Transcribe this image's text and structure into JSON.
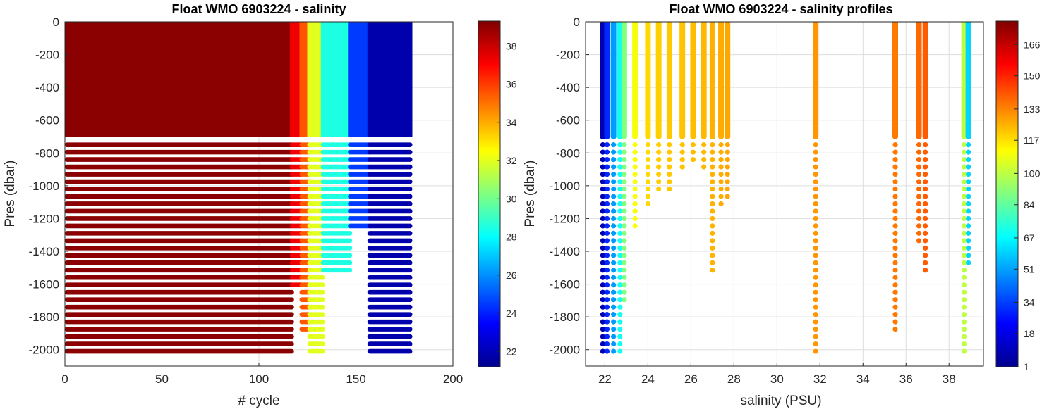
{
  "left_chart": {
    "title": "Float WMO 6903224 - salinity",
    "xlabel": "# cycle",
    "ylabel": "Pres (dbar)",
    "xticks": [
      "0",
      "50",
      "100",
      "150",
      "200"
    ],
    "yticks": [
      "0",
      "-200",
      "-400",
      "-600",
      "-800",
      "-1000",
      "-1200",
      "-1400",
      "-1600",
      "-1800",
      "-2000"
    ],
    "colorbar_ticks": [
      "38",
      "36",
      "34",
      "32",
      "30",
      "28",
      "26",
      "24",
      "22"
    ]
  },
  "right_chart": {
    "title": "Float WMO 6903224 - salinity profiles",
    "xlabel": "salinity (PSU)",
    "ylabel": "Pres (dbar)",
    "xticks": [
      "22",
      "24",
      "26",
      "28",
      "30",
      "32",
      "34",
      "36",
      "38"
    ],
    "yticks": [
      "0",
      "-200",
      "-400",
      "-600",
      "-800",
      "-1000",
      "-1200",
      "-1400",
      "-1600",
      "-1800",
      "-2000"
    ],
    "colorbar_ticks": [
      "166",
      "150",
      "133",
      "117",
      "100",
      "84",
      "67",
      "51",
      "34",
      "18",
      "1"
    ]
  },
  "chart_data": [
    {
      "type": "scatter",
      "title": "Float WMO 6903224 - salinity",
      "xlabel": "# cycle",
      "ylabel": "Pres (dbar)",
      "xlim": [
        0,
        200
      ],
      "ylim": [
        -2100,
        0
      ],
      "grid": true,
      "color_variable": "salinity",
      "clim": [
        21.2,
        39.3
      ],
      "colormap": "jet",
      "series": [
        {
          "cycles": [
            1,
            117
          ],
          "pres_range": [
            -2020,
            0
          ],
          "salinity": 39.1
        },
        {
          "cycles": [
            117,
            122
          ],
          "pres_range": [
            -1620,
            0
          ],
          "salinity": 37.3
        },
        {
          "cycles": [
            122,
            126
          ],
          "pres_range": [
            -1880,
            0
          ],
          "salinity": 35.5
        },
        {
          "cycles": [
            126,
            133
          ],
          "pres_range": [
            -2020,
            0
          ],
          "salinity": 32.0
        },
        {
          "cycles": [
            133,
            147
          ],
          "pres_range": [
            -1530,
            0
          ],
          "salinity": 28.5
        },
        {
          "cycles": [
            147,
            157
          ],
          "pres_range": [
            -1250,
            0
          ],
          "salinity": 24.5
        },
        {
          "cycles": [
            157,
            178
          ],
          "pres_range": [
            -2020,
            0
          ],
          "salinity": 22.0
        }
      ]
    },
    {
      "type": "scatter",
      "title": "Float WMO 6903224 - salinity profiles",
      "xlabel": "salinity (PSU)",
      "ylabel": "Pres (dbar)",
      "xlim": [
        21.1,
        39.6
      ],
      "ylim": [
        -2100,
        0
      ],
      "grid": true,
      "color_variable": "cycle",
      "clim": [
        1,
        178
      ],
      "colormap": "jet",
      "series": [
        {
          "salinity": 21.9,
          "cycle": 10,
          "pres_min": -2020
        },
        {
          "salinity": 22.1,
          "cycle": 30,
          "pres_min": -2020
        },
        {
          "salinity": 22.4,
          "cycle": 50,
          "pres_min": -2020
        },
        {
          "salinity": 22.7,
          "cycle": 70,
          "pres_min": -2020
        },
        {
          "salinity": 22.9,
          "cycle": 90,
          "pres_min": -1720
        },
        {
          "salinity": 23.4,
          "cycle": 110,
          "pres_min": -1260
        },
        {
          "salinity": 24.0,
          "cycle": 118,
          "pres_min": -1120
        },
        {
          "salinity": 24.5,
          "cycle": 120,
          "pres_min": -1060
        },
        {
          "salinity": 25.0,
          "cycle": 121,
          "pres_min": -1060
        },
        {
          "salinity": 25.6,
          "cycle": 122,
          "pres_min": -900
        },
        {
          "salinity": 26.1,
          "cycle": 123,
          "pres_min": -860
        },
        {
          "salinity": 26.6,
          "cycle": 124,
          "pres_min": -900
        },
        {
          "salinity": 27.0,
          "cycle": 125,
          "pres_min": -1520
        },
        {
          "salinity": 27.4,
          "cycle": 126,
          "pres_min": -1140
        },
        {
          "salinity": 27.7,
          "cycle": 127,
          "pres_min": -1080
        },
        {
          "salinity": 31.8,
          "cycle": 130,
          "pres_min": -2020
        },
        {
          "salinity": 35.5,
          "cycle": 135,
          "pres_min": -1880
        },
        {
          "salinity": 36.6,
          "cycle": 138,
          "pres_min": -1360
        },
        {
          "salinity": 36.9,
          "cycle": 140,
          "pres_min": -1520
        },
        {
          "salinity": 38.7,
          "cycle": 100,
          "pres_min": -2020
        },
        {
          "salinity": 38.9,
          "cycle": 60,
          "pres_min": -1500
        }
      ]
    }
  ]
}
